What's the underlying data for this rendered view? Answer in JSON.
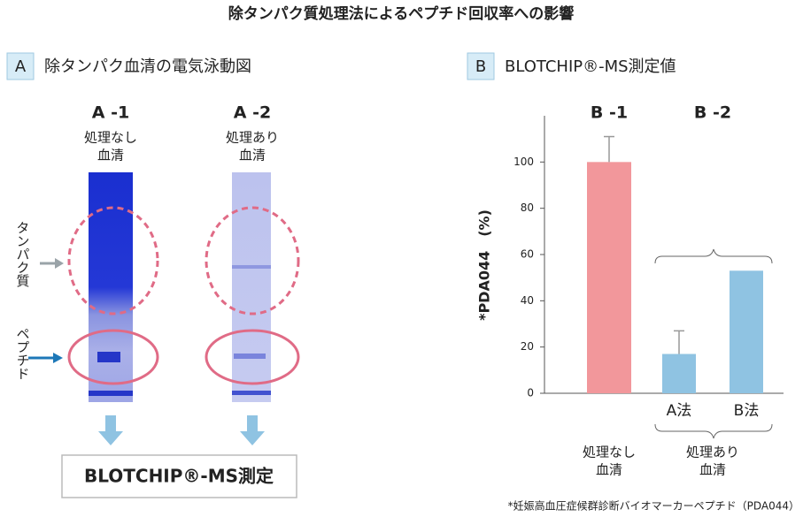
{
  "title": "除タンパク質処理法によるペプチド回収率への影響",
  "panel_a": {
    "label": "A",
    "heading": "除タンパク血清の電気泳動図",
    "lanes": [
      {
        "name": "A -1",
        "caption": [
          "処理なし",
          "血清"
        ]
      },
      {
        "name": "A -2",
        "caption": [
          "処理あり",
          "血清"
        ]
      }
    ],
    "protein_label": "タンパク質",
    "peptide_label": "ペプチド",
    "result": "BLOTCHIP®-MS測定"
  },
  "chart_data": {
    "type": "bar",
    "panel_label": "B",
    "title": "BLOTCHIP®-MS測定値",
    "y_label": "*PDA044　(%)",
    "categories": [
      null,
      "A法",
      "B法"
    ],
    "values": [
      100,
      17,
      53
    ],
    "errors": [
      11,
      10,
      null
    ],
    "colors": [
      "#f2979b",
      "#8fc3e2",
      "#8fc3e2"
    ],
    "group_labels": [
      "B -1",
      "B -2"
    ],
    "group_captions": [
      [
        "処理なし",
        "血清"
      ],
      [
        "処理あり",
        "血清"
      ]
    ],
    "ylim": [
      0,
      120
    ],
    "yticks": [
      0,
      20,
      40,
      60,
      80,
      100
    ],
    "footnote": "*妊娠高血圧症候群診断バイオマーカーペプチド（PDA044）"
  }
}
